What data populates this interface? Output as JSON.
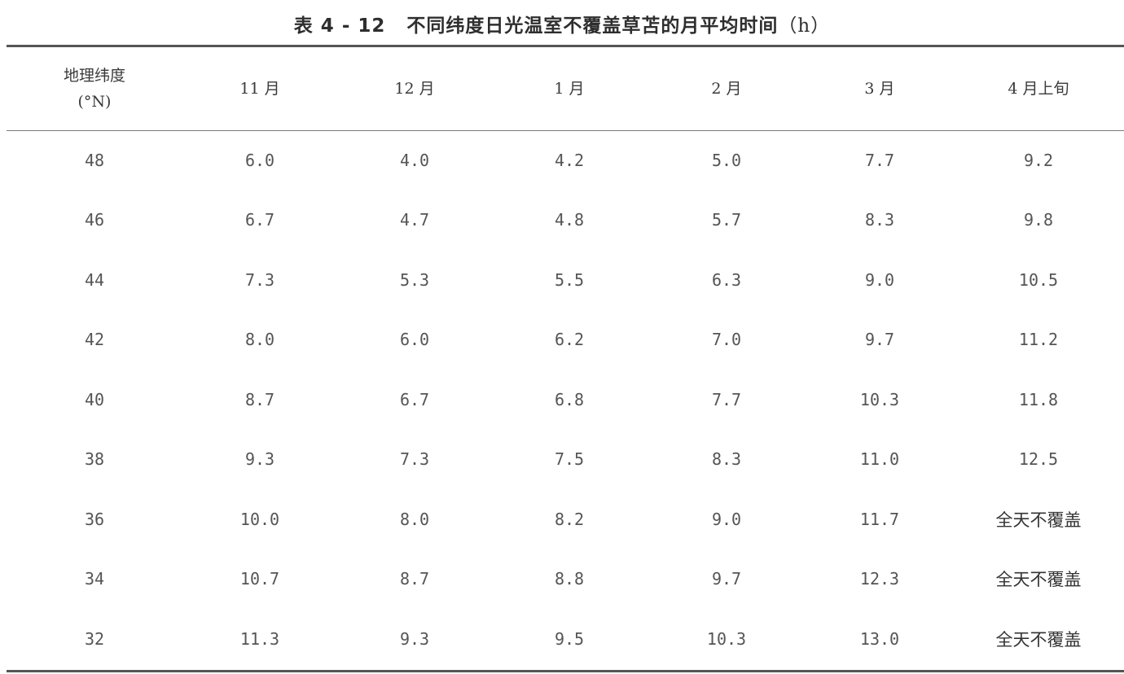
{
  "title": {
    "label": "表 4 - 12",
    "text": "不同纬度日光温室不覆盖草苫的月平均时间",
    "unit": "（h）"
  },
  "table": {
    "header": {
      "latitude_line1": "地理纬度",
      "latitude_line2": "(°N)",
      "months": [
        "11 月",
        "12 月",
        "1 月",
        "2 月",
        "3 月",
        "4 月上旬"
      ]
    },
    "rows": [
      {
        "lat": "48",
        "values": [
          "6.0",
          "4.0",
          "4.2",
          "5.0",
          "7.7",
          "9.2"
        ]
      },
      {
        "lat": "46",
        "values": [
          "6.7",
          "4.7",
          "4.8",
          "5.7",
          "8.3",
          "9.8"
        ]
      },
      {
        "lat": "44",
        "values": [
          "7.3",
          "5.3",
          "5.5",
          "6.3",
          "9.0",
          "10.5"
        ]
      },
      {
        "lat": "42",
        "values": [
          "8.0",
          "6.0",
          "6.2",
          "7.0",
          "9.7",
          "11.2"
        ]
      },
      {
        "lat": "40",
        "values": [
          "8.7",
          "6.7",
          "6.8",
          "7.7",
          "10.3",
          "11.8"
        ]
      },
      {
        "lat": "38",
        "values": [
          "9.3",
          "7.3",
          "7.5",
          "8.3",
          "11.0",
          "12.5"
        ]
      },
      {
        "lat": "36",
        "values": [
          "10.0",
          "8.0",
          "8.2",
          "9.0",
          "11.7",
          "全天不覆盖"
        ]
      },
      {
        "lat": "34",
        "values": [
          "10.7",
          "8.7",
          "8.8",
          "9.7",
          "12.3",
          "全天不覆盖"
        ]
      },
      {
        "lat": "32",
        "values": [
          "11.3",
          "9.3",
          "9.5",
          "10.3",
          "13.0",
          "全天不覆盖"
        ]
      }
    ]
  }
}
